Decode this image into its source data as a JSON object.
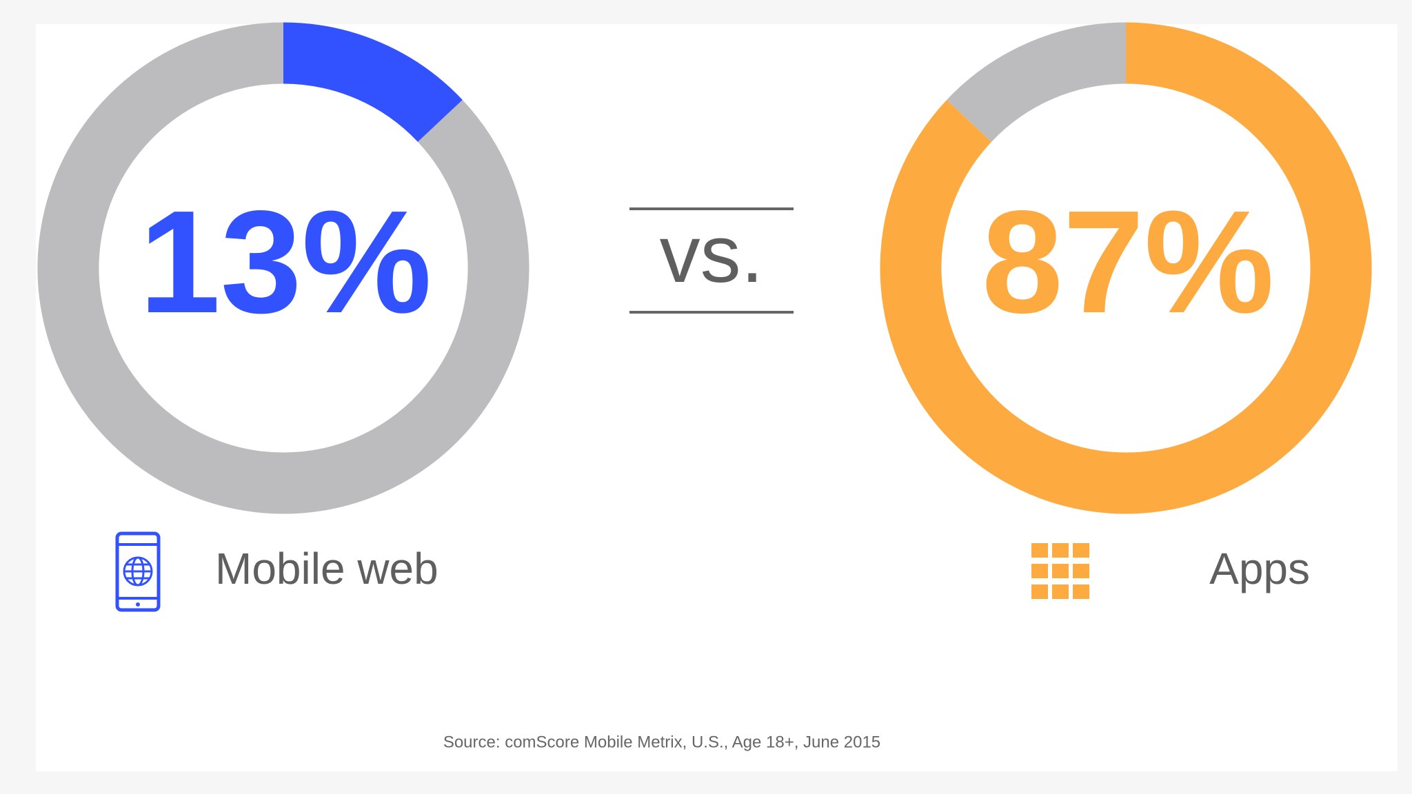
{
  "chart_data": [
    {
      "type": "donut",
      "categories": [
        "Mobile web",
        null
      ],
      "values": [
        13,
        87
      ],
      "value_labels": [
        "13%",
        null
      ],
      "colors": [
        "#3352ff",
        "#bcbcbe"
      ]
    },
    {
      "type": "donut",
      "categories": [
        "Apps",
        null
      ],
      "values": [
        87,
        13
      ],
      "value_labels": [
        "87%",
        null
      ],
      "colors": [
        "#fdab40",
        "#bcbcbe"
      ]
    }
  ],
  "separator": "vs.",
  "source": "Source: comScore Mobile Metrix, U.S., Age 18+, June 2015"
}
